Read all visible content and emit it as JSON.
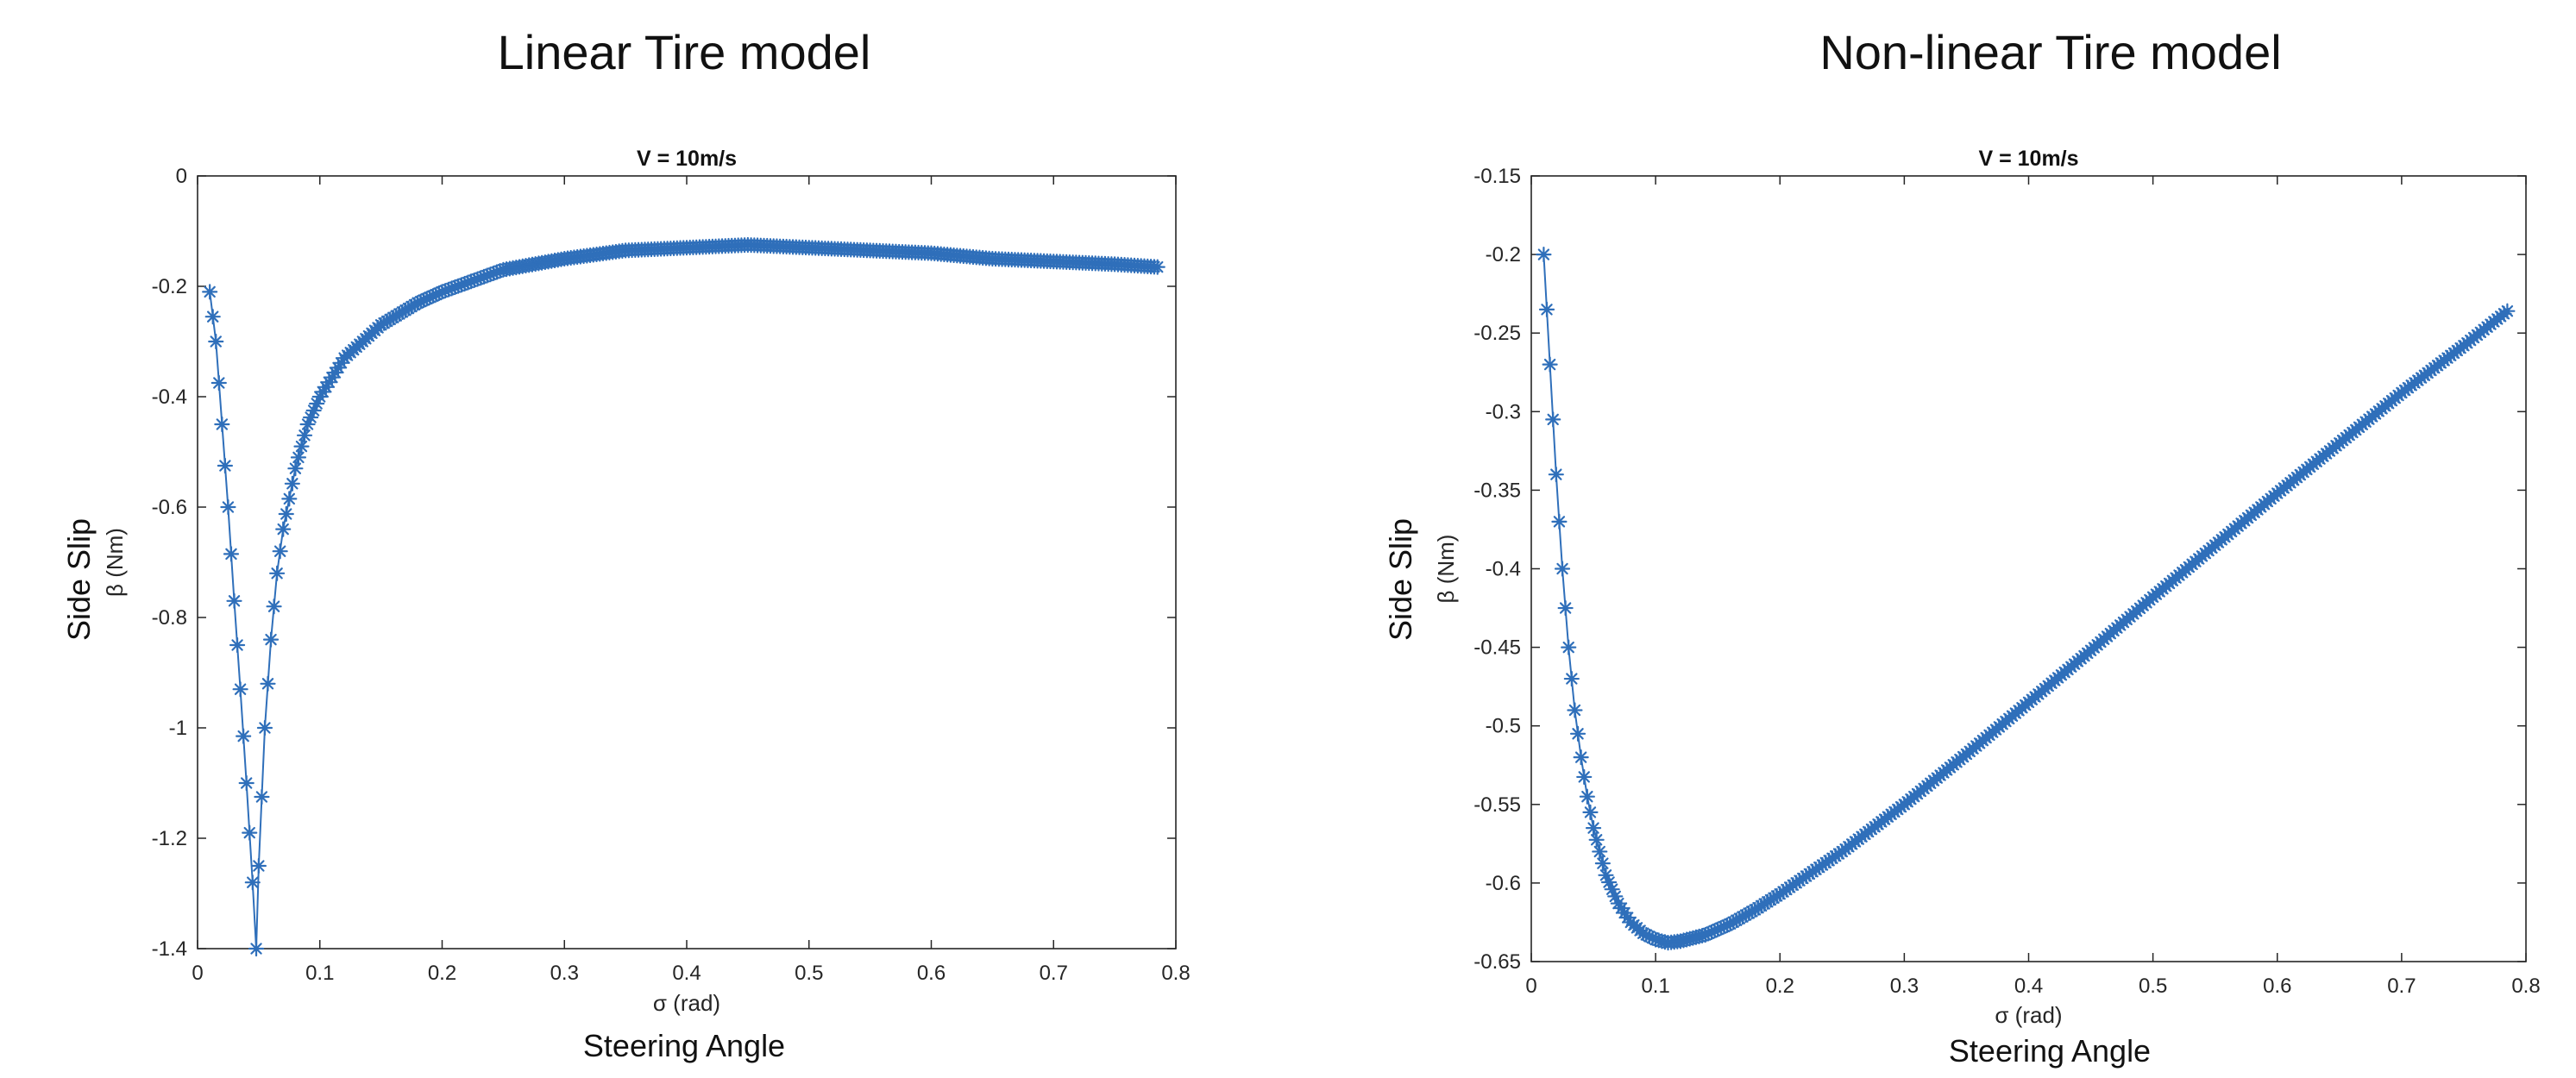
{
  "titles": {
    "left": "Linear Tire model",
    "right": "Non-linear Tire model"
  },
  "captions": {
    "left_x": "Steering Angle",
    "left_y": "Side Slip",
    "right_x": "Steering Angle",
    "right_y": "Side Slip"
  },
  "colors": {
    "series": "#2f6fba",
    "axis": "#262626",
    "background": "#ffffff"
  },
  "chart_data": [
    {
      "type": "line",
      "marker": "asterisk",
      "title": "V = 10m/s",
      "xlabel": "σ (rad)",
      "ylabel": "β (Nm)",
      "xlim": [
        0,
        0.8
      ],
      "ylim": [
        -1.4,
        0
      ],
      "xticks": [
        0,
        0.1,
        0.2,
        0.3,
        0.4,
        0.5,
        0.6,
        0.7,
        0.8
      ],
      "yticks": [
        0,
        -0.2,
        -0.4,
        -0.6,
        -0.8,
        -1,
        -1.2,
        -1.4
      ],
      "grid": false,
      "series": [
        {
          "x": [
            0.01,
            0.015,
            0.02,
            0.025,
            0.03,
            0.035,
            0.04,
            0.045,
            0.048,
            0.05,
            0.055,
            0.06,
            0.065,
            0.07,
            0.08,
            0.09,
            0.1,
            0.12,
            0.15,
            0.18,
            0.2,
            0.25,
            0.3,
            0.35,
            0.4,
            0.45,
            0.5,
            0.55,
            0.6,
            0.65,
            0.7,
            0.75,
            0.785
          ],
          "y": [
            -0.21,
            -0.3,
            -0.45,
            -0.6,
            -0.77,
            -0.93,
            -1.1,
            -1.28,
            -1.4,
            -1.25,
            -1.0,
            -0.84,
            -0.72,
            -0.64,
            -0.53,
            -0.45,
            -0.4,
            -0.33,
            -0.27,
            -0.23,
            -0.21,
            -0.17,
            -0.15,
            -0.135,
            -0.13,
            -0.125,
            -0.13,
            -0.135,
            -0.14,
            -0.15,
            -0.155,
            -0.16,
            -0.165
          ]
        }
      ]
    },
    {
      "type": "line",
      "marker": "asterisk",
      "title": "V = 10m/s",
      "xlabel": "σ (rad)",
      "ylabel": "β (Nm)",
      "xlim": [
        0,
        0.8
      ],
      "ylim": [
        -0.65,
        -0.15
      ],
      "xticks": [
        0,
        0.1,
        0.2,
        0.3,
        0.4,
        0.5,
        0.6,
        0.7,
        0.8
      ],
      "yticks": [
        -0.15,
        -0.2,
        -0.25,
        -0.3,
        -0.35,
        -0.4,
        -0.45,
        -0.5,
        -0.55,
        -0.6,
        -0.65
      ],
      "grid": false,
      "series": [
        {
          "x": [
            0.01,
            0.015,
            0.02,
            0.025,
            0.03,
            0.035,
            0.04,
            0.045,
            0.05,
            0.06,
            0.07,
            0.08,
            0.09,
            0.1,
            0.11,
            0.12,
            0.14,
            0.16,
            0.18,
            0.2,
            0.25,
            0.3,
            0.35,
            0.4,
            0.45,
            0.5,
            0.55,
            0.6,
            0.65,
            0.7,
            0.75,
            0.785
          ],
          "y": [
            -0.2,
            -0.27,
            -0.34,
            -0.4,
            -0.45,
            -0.49,
            -0.52,
            -0.545,
            -0.565,
            -0.595,
            -0.613,
            -0.625,
            -0.632,
            -0.636,
            -0.638,
            -0.637,
            -0.633,
            -0.626,
            -0.617,
            -0.607,
            -0.58,
            -0.55,
            -0.518,
            -0.485,
            -0.452,
            -0.418,
            -0.385,
            -0.352,
            -0.32,
            -0.288,
            -0.258,
            -0.236
          ]
        }
      ]
    }
  ]
}
